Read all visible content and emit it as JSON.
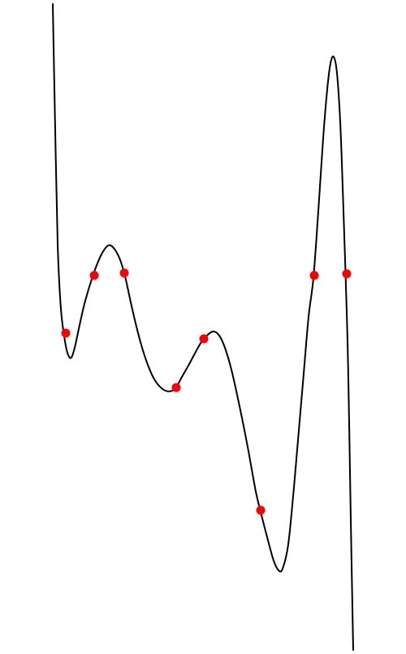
{
  "chart_data": {
    "type": "line",
    "title": "",
    "xlabel": "",
    "ylabel": "",
    "grid": false,
    "legend": "none",
    "axes_visible": false,
    "xlim": [
      0,
      500
    ],
    "ylim": [
      -805,
      0
    ],
    "series": [
      {
        "color": "#000000",
        "curve": [
          [
            65,
            -5
          ],
          [
            68,
            -160
          ],
          [
            71,
            -300
          ],
          [
            75,
            -380
          ],
          [
            80,
            -420
          ],
          [
            84,
            -437
          ],
          [
            88,
            -440
          ],
          [
            92,
            -428
          ],
          [
            97,
            -405
          ],
          [
            103,
            -378
          ],
          [
            110,
            -353
          ],
          [
            117,
            -332
          ],
          [
            124,
            -315
          ],
          [
            131,
            -304
          ],
          [
            136,
            -302
          ],
          [
            142,
            -308
          ],
          [
            148,
            -320
          ],
          [
            154,
            -340
          ],
          [
            161,
            -372
          ],
          [
            168,
            -402
          ],
          [
            175,
            -428
          ],
          [
            182,
            -449
          ],
          [
            189,
            -465
          ],
          [
            196,
            -475
          ],
          [
            204,
            -481
          ],
          [
            212,
            -481
          ],
          [
            218,
            -475
          ],
          [
            224,
            -464
          ],
          [
            232,
            -450
          ],
          [
            240,
            -435
          ],
          [
            248,
            -421
          ],
          [
            256,
            -412
          ],
          [
            263,
            -408
          ],
          [
            270,
            -413
          ],
          [
            277,
            -428
          ],
          [
            285,
            -455
          ],
          [
            295,
            -500
          ],
          [
            305,
            -550
          ],
          [
            315,
            -605
          ],
          [
            322,
            -634
          ],
          [
            330,
            -665
          ],
          [
            337,
            -690
          ],
          [
            343,
            -702
          ],
          [
            348,
            -700
          ],
          [
            355,
            -670
          ],
          [
            362,
            -600
          ],
          [
            368,
            -530
          ],
          [
            374,
            -460
          ],
          [
            380,
            -390
          ],
          [
            386,
            -342
          ],
          [
            392,
            -260
          ],
          [
            398,
            -170
          ],
          [
            403,
            -110
          ],
          [
            407,
            -78
          ],
          [
            411,
            -70
          ],
          [
            415,
            -90
          ],
          [
            419,
            -150
          ],
          [
            422,
            -230
          ],
          [
            425,
            -320
          ],
          [
            428,
            -420
          ],
          [
            430,
            -520
          ],
          [
            432,
            -640
          ],
          [
            435,
            -800
          ]
        ],
        "points": [
          [
            81,
            -410
          ],
          [
            116,
            -339
          ],
          [
            153,
            -336
          ],
          [
            217,
            -477
          ],
          [
            251,
            -417
          ],
          [
            321,
            -628
          ],
          [
            387,
            -339
          ],
          [
            427,
            -337
          ]
        ]
      }
    ],
    "point_color": "#ff0000"
  }
}
